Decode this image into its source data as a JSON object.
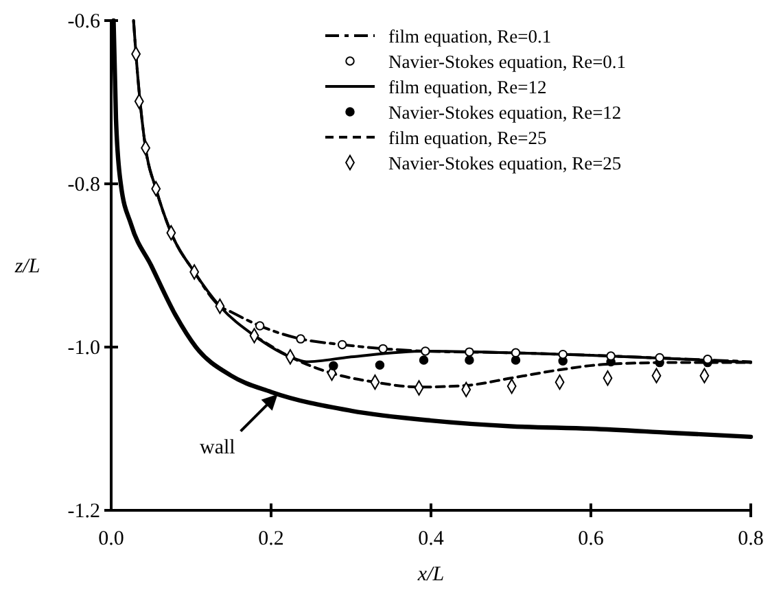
{
  "chart_data": {
    "type": "line",
    "xlabel": "x/L",
    "ylabel": "z/L",
    "xlim": [
      0,
      0.8
    ],
    "ylim": [
      -1.2,
      -0.6
    ],
    "xticks": [
      {
        "value": 0,
        "label": "0.0"
      },
      0.2,
      0.4,
      0.6,
      0.8
    ],
    "yticks": [
      -1.2,
      {
        "value": -1.0,
        "label": "-1.0"
      },
      -0.8,
      -0.6
    ],
    "grid": false,
    "legend": "top right",
    "annotations": [
      {
        "text": "wall",
        "x": 0.21,
        "y": -1.056
      }
    ],
    "series": [
      {
        "name": "film equation, Re=0.1",
        "line_style": "dashdot",
        "color": "#000000",
        "x": [
          0.028,
          0.031,
          0.043,
          0.056,
          0.075,
          0.104,
          0.136,
          0.15,
          0.186,
          0.237,
          0.289,
          0.34,
          0.393,
          0.5,
          0.6,
          0.7,
          0.8
        ],
        "values": [
          -0.6,
          -0.641,
          -0.756,
          -0.806,
          -0.86,
          -0.908,
          -0.95,
          -0.957,
          -0.974,
          -0.99,
          -0.997,
          -1.002,
          -1.005,
          -1.007,
          -1.01,
          -1.014,
          -1.018
        ]
      },
      {
        "name": "Navier-Stokes equation, Re=0.1",
        "type": "scatter",
        "marker": "circle",
        "color": "#ffffff",
        "x": [
          0.186,
          0.237,
          0.289,
          0.34,
          0.393,
          0.448,
          0.506,
          0.565,
          0.625,
          0.686,
          0.746
        ],
        "values": [
          -0.974,
          -0.99,
          -0.997,
          -1.002,
          -1.005,
          -1.006,
          -1.007,
          -1.009,
          -1.011,
          -1.013,
          -1.015
        ]
      },
      {
        "name": "film equation, Re=12",
        "line_style": "solid",
        "color": "#000000",
        "x": [
          0.028,
          0.031,
          0.043,
          0.056,
          0.075,
          0.104,
          0.136,
          0.179,
          0.224,
          0.244,
          0.3,
          0.393,
          0.5,
          0.6,
          0.7,
          0.8
        ],
        "values": [
          -0.6,
          -0.641,
          -0.756,
          -0.806,
          -0.86,
          -0.908,
          -0.95,
          -0.986,
          -1.012,
          -1.018,
          -1.012,
          -1.005,
          -1.007,
          -1.01,
          -1.014,
          -1.019
        ]
      },
      {
        "name": "Navier-Stokes equation, Re=12",
        "type": "scatter",
        "marker": "circle",
        "color": "#000000",
        "x": [
          0.278,
          0.336,
          0.391,
          0.448,
          0.506,
          0.565,
          0.625,
          0.686,
          0.746
        ],
        "values": [
          -1.023,
          -1.022,
          -1.016,
          -1.016,
          -1.016,
          -1.017,
          -1.018,
          -1.019,
          -1.019
        ]
      },
      {
        "name": "film equation, Re=25",
        "line_style": "dashed",
        "color": "#000000",
        "x": [
          0.179,
          0.224,
          0.276,
          0.33,
          0.385,
          0.444,
          0.5,
          0.56,
          0.62,
          0.7,
          0.8
        ],
        "values": [
          -0.986,
          -1.012,
          -1.032,
          -1.043,
          -1.049,
          -1.047,
          -1.038,
          -1.028,
          -1.021,
          -1.019,
          -1.019
        ]
      },
      {
        "name": "Navier-Stokes equation, Re=25",
        "type": "scatter",
        "marker": "diamond",
        "color": "#ffffff",
        "x": [
          0.031,
          0.035,
          0.043,
          0.056,
          0.075,
          0.104,
          0.136,
          0.179,
          0.224,
          0.276,
          0.33,
          0.385,
          0.444,
          0.501,
          0.561,
          0.621,
          0.682,
          0.742
        ],
        "values": [
          -0.641,
          -0.699,
          -0.756,
          -0.806,
          -0.86,
          -0.908,
          -0.95,
          -0.986,
          -1.012,
          -1.032,
          -1.043,
          -1.05,
          -1.052,
          -1.048,
          -1.043,
          -1.038,
          -1.035,
          -1.035
        ]
      },
      {
        "line_style": "solid",
        "color": "#000000",
        "x": [
          0.003,
          0.006,
          0.012,
          0.025,
          0.05,
          0.08,
          0.106,
          0.15,
          0.2,
          0.3,
          0.4,
          0.5,
          0.6,
          0.7,
          0.8
        ],
        "values": [
          -0.6,
          -0.72,
          -0.8,
          -0.85,
          -0.9,
          -0.96,
          -1.0,
          -1.035,
          -1.055,
          -1.078,
          -1.09,
          -1.097,
          -1.1,
          -1.105,
          -1.11
        ]
      }
    ]
  }
}
